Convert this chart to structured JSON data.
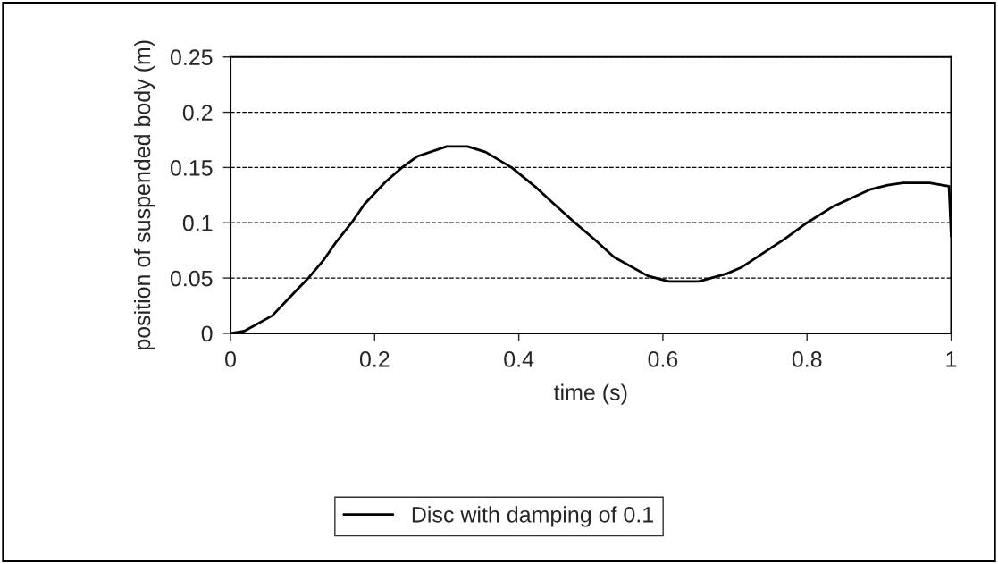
{
  "chart_data": {
    "type": "line",
    "xlabel": "time (s)",
    "ylabel": "position of suspended body (m)",
    "xlim": [
      0,
      1
    ],
    "xticks": [
      0,
      0.2,
      0.4,
      0.6,
      0.8,
      1
    ],
    "ylim": [
      0,
      0.25
    ],
    "yticks": [
      0,
      0.05,
      0.1,
      0.15,
      0.2,
      0.25
    ],
    "grid": "y",
    "legend": "bottom",
    "line_style": "solid",
    "marker": "none",
    "series": [
      {
        "name": "Disc with damping of 0.1",
        "color": "#000000",
        "x": [
          0,
          0.019,
          0.058,
          0.077,
          0.108,
          0.13,
          0.147,
          0.168,
          0.186,
          0.215,
          0.238,
          0.259,
          0.3,
          0.329,
          0.354,
          0.39,
          0.424,
          0.449,
          0.478,
          0.505,
          0.532,
          0.579,
          0.608,
          0.65,
          0.689,
          0.71,
          0.768,
          0.8,
          0.837,
          0.887,
          0.912,
          0.933,
          0.97,
          0.997,
          1.0
        ],
        "values": [
          0,
          0.002,
          0.016,
          0.029,
          0.05,
          0.067,
          0.083,
          0.1,
          0.117,
          0.137,
          0.15,
          0.16,
          0.169,
          0.169,
          0.164,
          0.15,
          0.132,
          0.117,
          0.1,
          0.085,
          0.069,
          0.052,
          0.047,
          0.047,
          0.054,
          0.06,
          0.085,
          0.1,
          0.115,
          0.13,
          0.134,
          0.136,
          0.136,
          0.133,
          0.088
        ]
      }
    ]
  }
}
